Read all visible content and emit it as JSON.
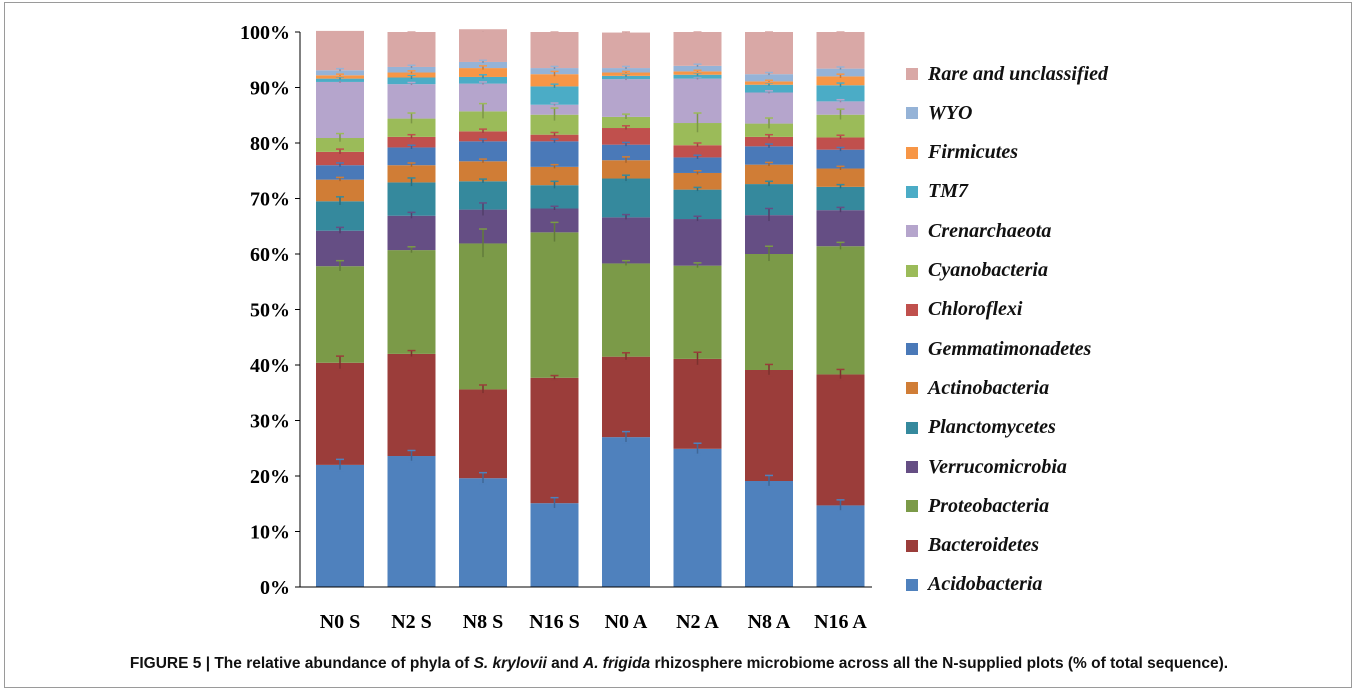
{
  "chart_data": {
    "type": "stacked-bar",
    "categories": [
      "N0 S",
      "N2 S",
      "N8 S",
      "N16 S",
      "N0 A",
      "N2 A",
      "N8 A",
      "N16 A"
    ],
    "y_ticks": [
      "0%",
      "10%",
      "20%",
      "30%",
      "40%",
      "50%",
      "60%",
      "70%",
      "80%",
      "90%",
      "100%"
    ],
    "ylim": [
      0,
      100
    ],
    "legend_position": "right",
    "series": [
      {
        "name": "Acidobacteria",
        "color": "#4f81bd",
        "values": [
          22.0,
          23.6,
          19.6,
          15.1,
          27.0,
          24.9,
          19.1,
          14.7
        ],
        "err": [
          1.0,
          1.0,
          1.0,
          1.0,
          1.0,
          1.0,
          1.0,
          1.0
        ]
      },
      {
        "name": "Bacteroidetes",
        "color": "#9b3d3a",
        "values": [
          18.4,
          18.4,
          16.0,
          22.6,
          14.5,
          16.2,
          20.0,
          23.6
        ],
        "err": [
          1.2,
          0.6,
          0.8,
          0.4,
          0.7,
          1.2,
          1.0,
          0.9
        ]
      },
      {
        "name": "Proteobacteria",
        "color": "#7b9a48",
        "values": [
          17.4,
          18.7,
          26.3,
          26.2,
          16.8,
          16.8,
          20.9,
          23.1
        ],
        "err": [
          1.0,
          0.6,
          2.6,
          1.8,
          0.5,
          0.5,
          1.4,
          0.7
        ]
      },
      {
        "name": "Verrucomicrobia",
        "color": "#654e84",
        "values": [
          6.4,
          6.2,
          6.1,
          4.3,
          8.3,
          8.4,
          7.0,
          6.5
        ],
        "err": [
          0.6,
          0.6,
          1.2,
          0.4,
          0.5,
          0.5,
          1.2,
          0.5
        ]
      },
      {
        "name": "Planctomycetes",
        "color": "#35899d",
        "values": [
          5.3,
          6.0,
          5.1,
          4.2,
          7.0,
          5.3,
          5.6,
          4.2
        ],
        "err": [
          0.8,
          0.8,
          0.4,
          0.7,
          0.6,
          0.4,
          0.5,
          0.4
        ]
      },
      {
        "name": "Actinobacteria",
        "color": "#d07d36",
        "values": [
          3.9,
          3.1,
          3.6,
          3.3,
          3.3,
          3.0,
          3.5,
          3.3
        ],
        "err": [
          0.4,
          0.4,
          0.4,
          0.4,
          0.6,
          0.4,
          0.4,
          0.4
        ]
      },
      {
        "name": "Gemmatimonadetes",
        "color": "#4a79b8",
        "values": [
          2.6,
          3.2,
          3.6,
          4.6,
          2.8,
          2.8,
          3.3,
          3.4
        ],
        "err": [
          0.4,
          0.4,
          0.4,
          0.4,
          0.4,
          0.4,
          0.4,
          0.4
        ]
      },
      {
        "name": "Chloroflexi",
        "color": "#c0504d",
        "values": [
          2.4,
          1.9,
          1.8,
          1.2,
          3.0,
          2.2,
          1.7,
          2.2
        ],
        "err": [
          0.5,
          0.4,
          0.4,
          0.4,
          0.4,
          0.4,
          0.4,
          0.4
        ]
      },
      {
        "name": "Cyanobacteria",
        "color": "#9bbb59",
        "values": [
          2.5,
          3.3,
          3.6,
          3.6,
          2.0,
          4.0,
          2.4,
          4.1
        ],
        "err": [
          0.8,
          1.0,
          1.4,
          1.2,
          0.5,
          1.8,
          1.0,
          1.0
        ]
      },
      {
        "name": "Crenarchaeota",
        "color": "#b5a5cc",
        "values": [
          10.1,
          6.2,
          5.0,
          1.8,
          6.8,
          8.0,
          5.6,
          2.4
        ],
        "err": [
          0.3,
          0.3,
          0.3,
          0.3,
          0.3,
          0.3,
          0.3,
          0.3
        ]
      },
      {
        "name": "TM7",
        "color": "#4bacc6",
        "values": [
          0.6,
          1.2,
          1.2,
          3.3,
          0.6,
          0.7,
          1.4,
          2.9
        ],
        "err": [
          0.3,
          0.4,
          0.4,
          0.4,
          0.3,
          0.3,
          0.3,
          0.4
        ]
      },
      {
        "name": "Firmicutes",
        "color": "#f79646",
        "values": [
          0.6,
          0.9,
          1.6,
          2.2,
          0.6,
          0.6,
          0.6,
          1.6
        ],
        "err": [
          0.2,
          0.3,
          0.4,
          0.5,
          0.2,
          0.2,
          0.2,
          0.4
        ]
      },
      {
        "name": "WYO",
        "color": "#95b3d7",
        "values": [
          0.9,
          1.0,
          1.1,
          1.1,
          0.8,
          1.0,
          1.3,
          1.4
        ],
        "err": [
          0.3,
          0.3,
          0.3,
          0.3,
          0.3,
          0.3,
          0.3,
          0.3
        ]
      },
      {
        "name": "Rare and unclassified",
        "color": "#d9a8a6",
        "values": [
          7.1,
          6.3,
          5.9,
          6.5,
          6.4,
          6.1,
          7.6,
          6.6
        ],
        "err": [
          0.2,
          0.2,
          0.2,
          0.2,
          0.2,
          0.2,
          0.2,
          0.2
        ]
      }
    ]
  },
  "caption": {
    "part1": "FIGURE 5 | The relative abundance of phyla of ",
    "species1": "S. krylovii",
    "part2": " and ",
    "species2": "A. frigida",
    "part3": " rhizosphere microbiome across all the N-supplied plots (% of total sequence)."
  }
}
